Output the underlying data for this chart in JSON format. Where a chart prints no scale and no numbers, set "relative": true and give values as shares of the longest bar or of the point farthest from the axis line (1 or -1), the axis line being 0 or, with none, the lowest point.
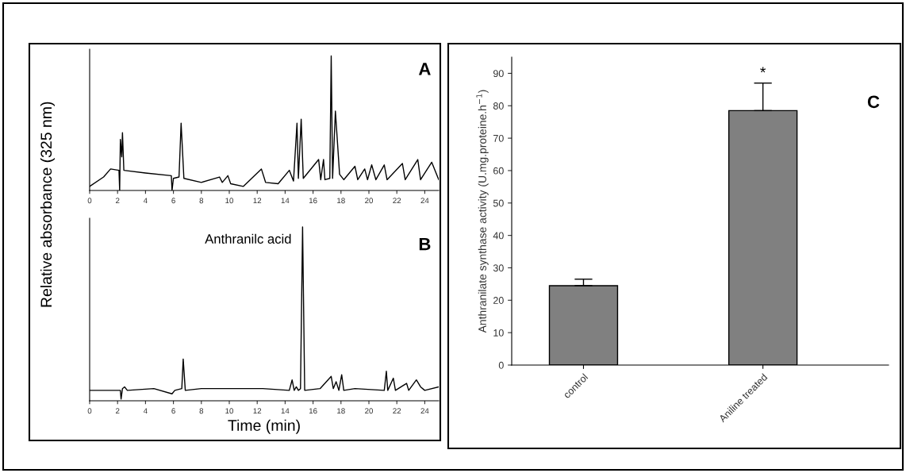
{
  "chart_data": [
    {
      "type": "line",
      "relative": true,
      "ylabel": "Relative absorbance (325 nm)",
      "annotations": [
        "A"
      ],
      "tick_labels": "x",
      "color": "#000000",
      "x": [
        0,
        1,
        1.5,
        2.1,
        2.15,
        2.2,
        2.3,
        2.35,
        2.45,
        4,
        5.85,
        5.9,
        6.0,
        6.4,
        6.55,
        6.75,
        8,
        9.3,
        9.5,
        9.9,
        10.1,
        11,
        12.3,
        12.6,
        13.5,
        14.3,
        14.6,
        14.85,
        14.95,
        15.15,
        15.3,
        16.4,
        16.55,
        16.75,
        16.85,
        17.2,
        17.3,
        17.4,
        17.6,
        17.9,
        18.2,
        19,
        19.2,
        19.7,
        19.9,
        20.2,
        20.5,
        21.1,
        21.3,
        22.4,
        22.6,
        23.5,
        23.7,
        24.5,
        25
      ],
      "values": [
        0.03,
        0.1,
        0.16,
        0.15,
        0.0,
        0.38,
        0.25,
        0.43,
        0.15,
        0.13,
        0.11,
        0.0,
        0.09,
        0.1,
        0.5,
        0.09,
        0.06,
        0.1,
        0.06,
        0.11,
        0.05,
        0.03,
        0.16,
        0.06,
        0.05,
        0.15,
        0.07,
        0.5,
        0.09,
        0.53,
        0.09,
        0.23,
        0.08,
        0.23,
        0.08,
        0.09,
        1.0,
        0.09,
        0.59,
        0.12,
        0.08,
        0.18,
        0.08,
        0.16,
        0.08,
        0.19,
        0.08,
        0.19,
        0.08,
        0.2,
        0.08,
        0.23,
        0.08,
        0.21,
        0.08
      ],
      "xlim": [
        0,
        25
      ],
      "xticks": [
        0,
        2,
        4,
        6,
        8,
        10,
        12,
        14,
        16,
        18,
        20,
        22,
        24
      ]
    },
    {
      "type": "line",
      "relative": true,
      "xlabel": "Time (min)",
      "annotations": [
        "B",
        {
          "text": "Anthranilc acid",
          "x": 15.25,
          "y": 1.0
        }
      ],
      "tick_labels": "x",
      "color": "#000000",
      "x": [
        0,
        2.2,
        2.25,
        2.35,
        2.5,
        2.7,
        4.6,
        5.9,
        6.1,
        6.6,
        6.7,
        6.85,
        8,
        10,
        12.4,
        14.3,
        14.5,
        14.65,
        14.8,
        14.95,
        15.1,
        15.25,
        15.4,
        16.5,
        17.3,
        17.45,
        17.65,
        17.85,
        18.05,
        18.2,
        19,
        21.1,
        21.25,
        21.35,
        21.75,
        21.9,
        22.7,
        22.85,
        23.4,
        23.7,
        24,
        25
      ],
      "values": [
        0.06,
        0.06,
        0.01,
        0.07,
        0.08,
        0.06,
        0.07,
        0.04,
        0.06,
        0.07,
        0.24,
        0.06,
        0.07,
        0.07,
        0.07,
        0.06,
        0.12,
        0.06,
        0.08,
        0.06,
        0.07,
        1.0,
        0.06,
        0.07,
        0.14,
        0.07,
        0.11,
        0.06,
        0.15,
        0.06,
        0.07,
        0.06,
        0.17,
        0.06,
        0.13,
        0.06,
        0.1,
        0.06,
        0.12,
        0.08,
        0.06,
        0.08
      ],
      "xlim": [
        0,
        25
      ],
      "xticks": [
        0,
        2,
        4,
        6,
        8,
        10,
        12,
        14,
        16,
        18,
        20,
        22,
        24
      ]
    },
    {
      "type": "bar",
      "categories": [
        "control",
        "Aniline treated"
      ],
      "values": [
        24.5,
        78.5
      ],
      "color": "#808080",
      "errors": [
        [
          24.5,
          26.5
        ],
        [
          78.5,
          87
        ]
      ],
      "ylabel": "Anthranilate synthase activity (U.mg.proteine.h$^{−1}$)",
      "annotations": [
        "C",
        {
          "text": "*",
          "x": "Aniline treated",
          "y": 87
        }
      ],
      "ylim": [
        0,
        95
      ],
      "yticks": [
        0,
        10,
        20,
        30,
        40,
        50,
        60,
        70,
        80,
        90
      ]
    }
  ]
}
